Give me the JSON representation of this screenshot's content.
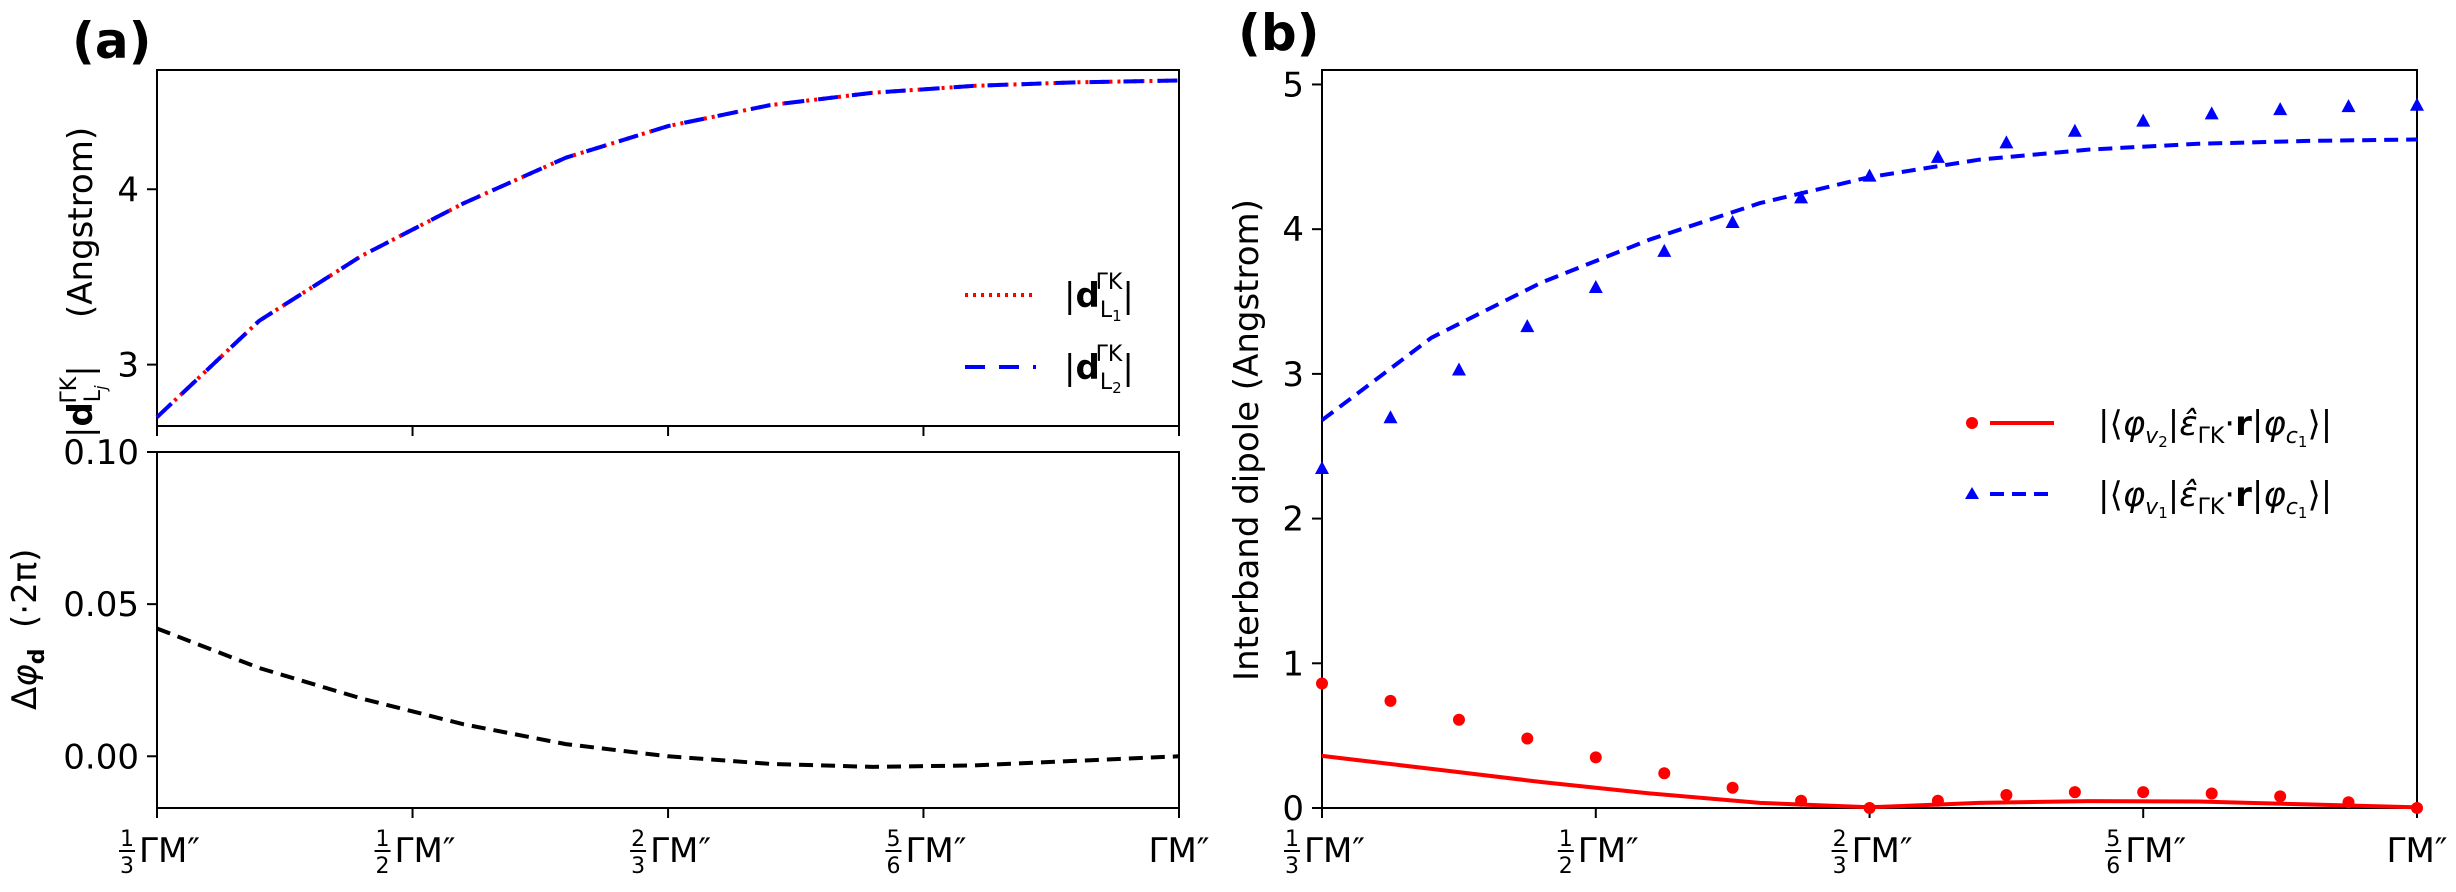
{
  "chart_data": [
    {
      "panel": "(a)",
      "subplot": "top",
      "type": "line",
      "ylabel": "|d_{L_j}^{ΓK}| (Angstrom)",
      "xlim": [
        0.3333,
        1.0
      ],
      "ylim": [
        2.65,
        4.68
      ],
      "yticks": [
        3,
        4
      ],
      "xtick_values": [
        0.3333,
        0.5,
        0.6667,
        0.8333,
        1.0
      ],
      "x": [
        0.3333,
        0.4,
        0.4667,
        0.5333,
        0.6,
        0.6667,
        0.7333,
        0.8,
        0.8667,
        0.9333,
        1.0
      ],
      "series": [
        {
          "name": "|d_{L1}^{ΓK}|",
          "color": "#ff0000",
          "style": "dotted",
          "values": [
            2.7,
            3.25,
            3.62,
            3.92,
            4.18,
            4.36,
            4.48,
            4.55,
            4.59,
            4.61,
            4.62
          ]
        },
        {
          "name": "|d_{L2}^{ΓK}|",
          "color": "#0000ff",
          "style": "dashed",
          "values": [
            2.7,
            3.25,
            3.62,
            3.92,
            4.18,
            4.36,
            4.48,
            4.55,
            4.59,
            4.61,
            4.62
          ]
        }
      ]
    },
    {
      "panel": "(a)",
      "subplot": "bottom",
      "type": "line",
      "ylabel": "Δφ_d(·2π)",
      "xlim": [
        0.3333,
        1.0
      ],
      "ylim": [
        -0.017,
        0.1
      ],
      "yticks": [
        0.0,
        0.05,
        0.1
      ],
      "ytick_labels": [
        "0.00",
        "0.05",
        "0.10"
      ],
      "xtick_values": [
        0.3333,
        0.5,
        0.6667,
        0.8333,
        1.0
      ],
      "xtick_labels": [
        "1/3ΓM″",
        "1/2ΓM″",
        "2/3ΓM″",
        "5/6ΓM″",
        "ΓM″"
      ],
      "x": [
        0.3333,
        0.4,
        0.4667,
        0.5333,
        0.6,
        0.6667,
        0.7333,
        0.8,
        0.8667,
        0.9333,
        1.0
      ],
      "series": [
        {
          "name": "Δφ",
          "color": "#000000",
          "style": "dashed",
          "values": [
            0.042,
            0.029,
            0.019,
            0.0105,
            0.004,
            0.0,
            -0.0025,
            -0.0035,
            -0.003,
            -0.0015,
            0.0
          ]
        }
      ]
    },
    {
      "panel": "(b)",
      "type": "line+scatter",
      "ylabel": "Interband dipole (Angstrom)",
      "xlim": [
        0.3333,
        1.0
      ],
      "ylim": [
        0,
        5.1
      ],
      "yticks": [
        0,
        1,
        2,
        3,
        4,
        5
      ],
      "xtick_values": [
        0.3333,
        0.5,
        0.6667,
        0.8333,
        1.0
      ],
      "xtick_labels": [
        "1/3ΓM″",
        "1/2ΓM″",
        "2/3ΓM″",
        "5/6ΓM″",
        "ΓM″"
      ],
      "x_line": [
        0.3333,
        0.4,
        0.4667,
        0.5333,
        0.6,
        0.6667,
        0.7333,
        0.8,
        0.8667,
        0.9333,
        1.0
      ],
      "x_markers": [
        0.3333,
        0.375,
        0.4167,
        0.4583,
        0.5,
        0.5417,
        0.5833,
        0.625,
        0.6667,
        0.7083,
        0.75,
        0.7917,
        0.8333,
        0.875,
        0.9167,
        0.9583,
        1.0
      ],
      "series": [
        {
          "name": "|⟨φv2|ε̂ΓK·r|φc1⟩|",
          "color": "#ff0000",
          "line_style": "solid",
          "marker": "circle",
          "line_values": [
            0.36,
            0.27,
            0.18,
            0.1,
            0.035,
            0.005,
            0.035,
            0.048,
            0.045,
            0.025,
            0.005
          ],
          "marker_values": [
            0.86,
            0.74,
            0.61,
            0.48,
            0.35,
            0.24,
            0.14,
            0.05,
            0.0,
            0.05,
            0.09,
            0.11,
            0.11,
            0.1,
            0.08,
            0.04,
            0.0
          ]
        },
        {
          "name": "|⟨φv1|ε̂ΓK·r|φc1⟩|",
          "color": "#0000ff",
          "line_style": "dashed",
          "marker": "triangle",
          "line_values": [
            2.68,
            3.25,
            3.63,
            3.93,
            4.18,
            4.36,
            4.48,
            4.55,
            4.59,
            4.61,
            4.62
          ],
          "marker_values": [
            2.35,
            2.7,
            3.03,
            3.33,
            3.6,
            3.85,
            4.05,
            4.22,
            4.37,
            4.5,
            4.6,
            4.68,
            4.75,
            4.8,
            4.83,
            4.85,
            4.86
          ]
        }
      ]
    }
  ],
  "labels": {
    "panel_a": "(a)",
    "panel_b": "(b)",
    "ylabel_a_top": "(Angstrom)",
    "ylabel_a_bottom": "(·2π)",
    "ylabel_b": "Interband dipole (Angstrom)",
    "gamma_m": "ΓM″",
    "legend_b_mid": "·r|φ"
  }
}
